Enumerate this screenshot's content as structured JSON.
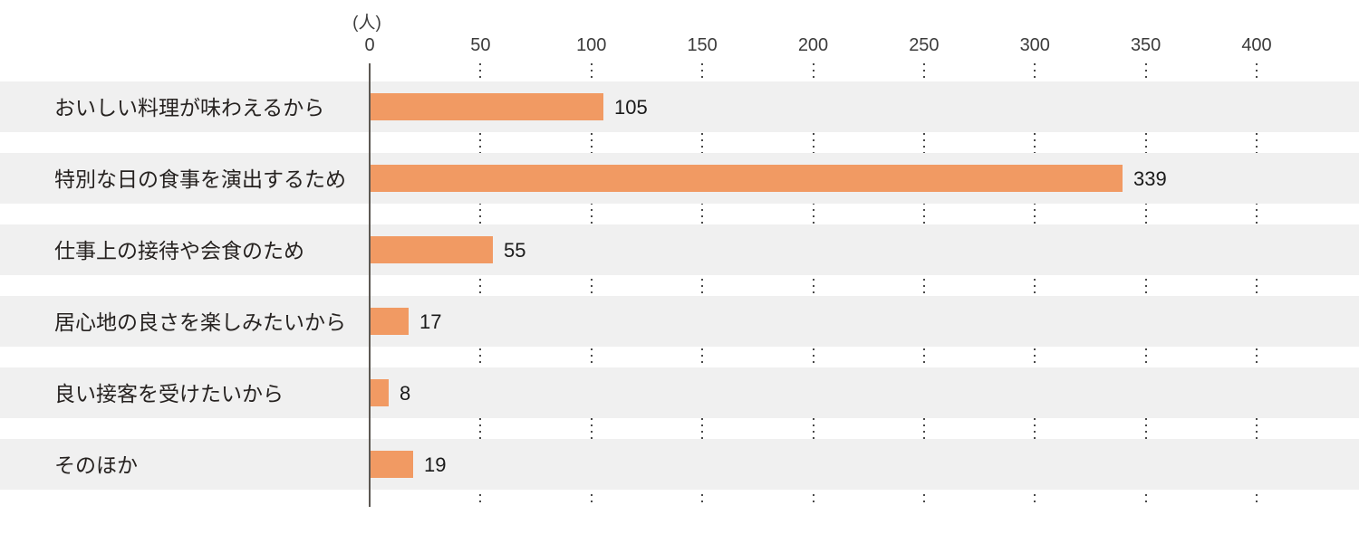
{
  "chart_data": {
    "type": "bar",
    "orientation": "horizontal",
    "title": "",
    "unit_label": "(人)",
    "categories": [
      "おいしい料理が味わえるから",
      "特別な日の食事を演出するため",
      "仕事上の接待や会食のため",
      "居心地の良さを楽しみたいから",
      "良い接客を受けたいから",
      "そのほか"
    ],
    "values": [
      105,
      339,
      55,
      17,
      8,
      19
    ],
    "value_labels": [
      "105",
      "339",
      "55",
      "17",
      "8",
      "19"
    ],
    "xlim": [
      0,
      400
    ],
    "xticks": [
      0,
      50,
      100,
      150,
      200,
      250,
      300,
      350,
      400
    ],
    "xtick_labels": [
      "0",
      "50",
      "100",
      "150",
      "200",
      "250",
      "300",
      "350",
      "400"
    ],
    "legend": "none",
    "grid": "dotted-vertical-between-bands",
    "colors": {
      "bar": "#F19A63",
      "row_band": "#F0F0F0",
      "axis_line": "#5c5853",
      "grid_dots": "#4a4a4a",
      "category_text": "#262220",
      "value_text": "#1a1a1a",
      "tick_text": "#3c3c3c",
      "background": "#ffffff"
    }
  }
}
